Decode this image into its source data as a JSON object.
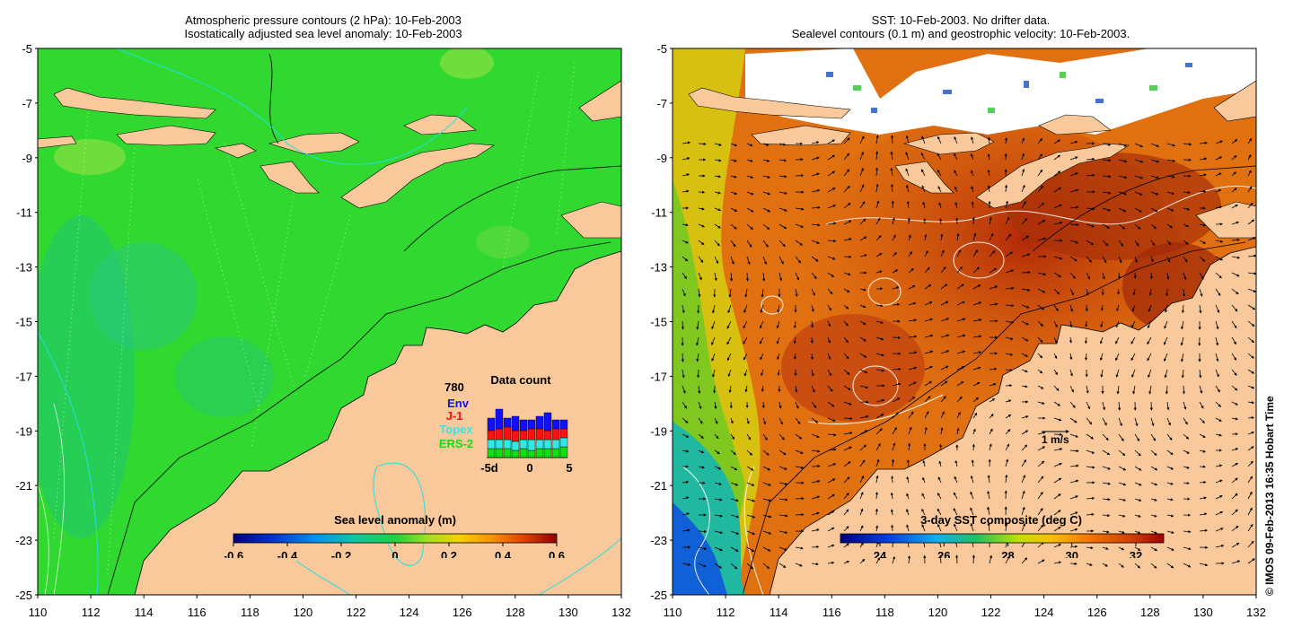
{
  "left_panel": {
    "title_line1": "Atmospheric pressure contours (2 hPa): 10-Feb-2003",
    "title_line2": "Isostatically adjusted sea level anomaly: 10-Feb-2003",
    "colorbar": {
      "label": "Sea level anomaly (m)",
      "ticks": [
        "-0.6",
        "-0.4",
        "-0.2",
        "0",
        "0.2",
        "0.4",
        "0.6"
      ]
    },
    "data_count": {
      "title": "Data count",
      "total": "780",
      "legend": [
        {
          "name": "Env",
          "color": "#1010ff"
        },
        {
          "name": "J-1",
          "color": "#ff1010"
        },
        {
          "name": "Topex",
          "color": "#30e8e8"
        },
        {
          "name": "ERS-2",
          "color": "#10e010"
        }
      ],
      "axis_ticks": [
        "-5d",
        "0",
        "5"
      ]
    }
  },
  "right_panel": {
    "title_line1": "SST: 10-Feb-2003. No drifter data.",
    "title_line2": "Sealevel contours (0.1 m) and geostrophic velocity: 10-Feb-2003.",
    "colorbar": {
      "label": "3-day SST composite (deg C)",
      "ticks": [
        "24",
        "26",
        "28",
        "30",
        "32"
      ]
    },
    "velocity_scale_label": "1 m/s"
  },
  "axes": {
    "y_ticks": [
      "-5",
      "-7",
      "-9",
      "-11",
      "-13",
      "-15",
      "-17",
      "-19",
      "-21",
      "-23",
      "-25"
    ],
    "x_ticks": [
      "110",
      "112",
      "114",
      "116",
      "118",
      "120",
      "122",
      "124",
      "126",
      "128",
      "130",
      "132"
    ]
  },
  "credit": "© IMOS 09-Feb-2013 16:35 Hobart Time",
  "colors": {
    "land": "#f9c99b",
    "sla_ocean": "#30d830",
    "sst_warm": "#e07010",
    "sst_hot": "#b02808"
  }
}
